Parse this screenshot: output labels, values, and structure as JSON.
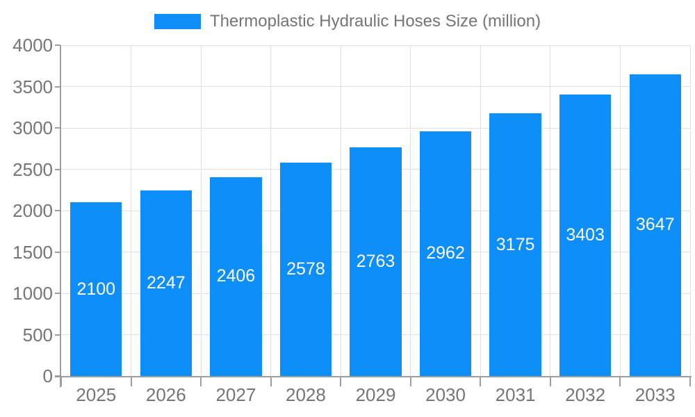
{
  "chart_data": {
    "type": "bar",
    "title": "Thermoplastic Hydraulic Hoses Size (million)",
    "categories": [
      "2025",
      "2026",
      "2027",
      "2028",
      "2029",
      "2030",
      "2031",
      "2032",
      "2033"
    ],
    "values": [
      2100,
      2247,
      2406,
      2578,
      2763,
      2962,
      3175,
      3403,
      3647
    ],
    "xlabel": "",
    "ylabel": "",
    "ylim": [
      0,
      4000
    ],
    "yticks": [
      0,
      500,
      1000,
      1500,
      2000,
      2500,
      3000,
      3500,
      4000
    ],
    "grid": true,
    "legend_position": "top-center",
    "value_labels": "centered-inside-bars",
    "colors": {
      "bar": "#0d8ef9",
      "grid": "#e0e0e0",
      "axis": "#9e9e9e",
      "tick_text": "#757575",
      "value_text": "#ffffff",
      "background": "#ffffff"
    }
  }
}
